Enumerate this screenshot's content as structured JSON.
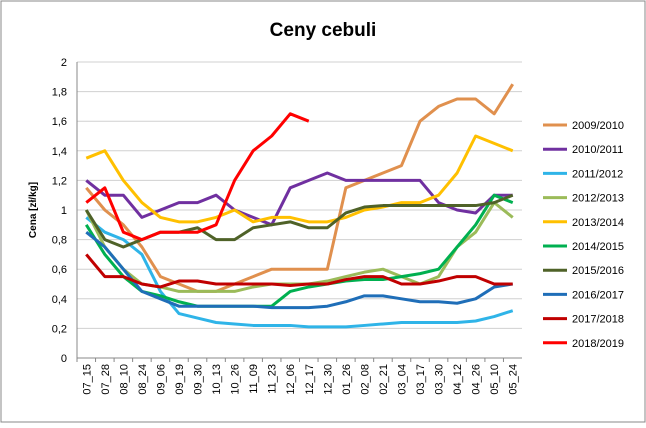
{
  "chart_data": {
    "type": "line",
    "title": "Ceny cebuli",
    "y_label": "Cena [zł/kg]",
    "categories": [
      "07_15",
      "07_28",
      "08_10",
      "08_24",
      "09_06",
      "09_19",
      "09_30",
      "10_13",
      "10_26",
      "11_09",
      "11_23",
      "12_06",
      "12_17",
      "12_30",
      "01_26",
      "02_08",
      "02_21",
      "03_04",
      "03_17",
      "03_30",
      "04_12",
      "04_26",
      "05_10",
      "05_24"
    ],
    "ylim": [
      0,
      2
    ],
    "yticks": [
      0,
      {
        "value": 0.2,
        "label": "0,2"
      },
      {
        "value": 0.4,
        "label": "0,4"
      },
      {
        "value": 0.6,
        "label": "0,6"
      },
      {
        "value": 0.8,
        "label": "0,8"
      },
      1,
      {
        "value": 1.2,
        "label": "1,2"
      },
      {
        "value": 1.4,
        "label": "1,4"
      },
      {
        "value": 1.6,
        "label": "1,6"
      },
      {
        "value": 1.8,
        "label": "1,8"
      },
      2
    ],
    "grid": true,
    "legend": "right",
    "series": [
      {
        "name": "2009/2010",
        "color": "#e0904e",
        "values": [
          1.15,
          1.0,
          0.9,
          0.75,
          0.55,
          0.5,
          0.45,
          0.45,
          0.5,
          0.55,
          0.6,
          0.6,
          0.6,
          0.6,
          1.15,
          1.2,
          1.25,
          1.3,
          1.6,
          1.7,
          1.75,
          1.75,
          1.65,
          1.85
        ]
      },
      {
        "name": "2010/2011",
        "color": "#7030a0",
        "values": [
          1.2,
          1.1,
          1.1,
          0.95,
          1.0,
          1.05,
          1.05,
          1.1,
          1.0,
          0.95,
          0.9,
          1.15,
          1.2,
          1.25,
          1.2,
          1.2,
          1.2,
          1.2,
          1.2,
          1.05,
          1.0,
          0.98,
          1.1,
          1.1
        ]
      },
      {
        "name": "2011/2012",
        "color": "#2fb4e8",
        "values": [
          0.95,
          0.85,
          0.8,
          0.7,
          0.45,
          0.3,
          0.27,
          0.24,
          0.23,
          0.22,
          0.22,
          0.22,
          0.21,
          0.21,
          0.21,
          0.22,
          0.23,
          0.24,
          0.24,
          0.24,
          0.24,
          0.25,
          0.28,
          0.32
        ]
      },
      {
        "name": "2012/2013",
        "color": "#9bbb59",
        "values": [
          1.0,
          0.75,
          0.6,
          0.5,
          0.48,
          0.45,
          0.45,
          0.45,
          0.45,
          0.48,
          0.5,
          0.5,
          0.5,
          0.52,
          0.55,
          0.58,
          0.6,
          0.55,
          0.5,
          0.55,
          0.75,
          0.85,
          1.05,
          0.95
        ]
      },
      {
        "name": "2013/2014",
        "color": "#ffc000",
        "values": [
          1.35,
          1.4,
          1.2,
          1.05,
          0.95,
          0.92,
          0.92,
          0.95,
          1.0,
          0.92,
          0.95,
          0.95,
          0.92,
          0.92,
          0.95,
          1.0,
          1.02,
          1.05,
          1.05,
          1.1,
          1.25,
          1.5,
          1.45,
          1.4
        ]
      },
      {
        "name": "2014/2015",
        "color": "#00b050",
        "values": [
          0.9,
          0.7,
          0.55,
          0.45,
          0.42,
          0.38,
          0.35,
          0.35,
          0.35,
          0.35,
          0.35,
          0.45,
          0.48,
          0.5,
          0.52,
          0.53,
          0.53,
          0.55,
          0.57,
          0.6,
          0.75,
          0.9,
          1.1,
          1.05
        ]
      },
      {
        "name": "2015/2016",
        "color": "#4f6228",
        "values": [
          1.0,
          0.8,
          0.75,
          0.8,
          0.85,
          0.85,
          0.88,
          0.8,
          0.8,
          0.88,
          0.9,
          0.92,
          0.88,
          0.88,
          0.98,
          1.02,
          1.03,
          1.03,
          1.03,
          1.03,
          1.03,
          1.03,
          1.05,
          1.1
        ]
      },
      {
        "name": "2016/2017",
        "color": "#1f6eb8",
        "values": [
          0.85,
          0.75,
          0.6,
          0.45,
          0.4,
          0.35,
          0.35,
          0.35,
          0.35,
          0.35,
          0.34,
          0.34,
          0.34,
          0.35,
          0.38,
          0.42,
          0.42,
          0.4,
          0.38,
          0.38,
          0.37,
          0.4,
          0.48,
          0.5
        ]
      },
      {
        "name": "2017/2018",
        "color": "#c00000",
        "values": [
          0.7,
          0.55,
          0.55,
          0.5,
          0.48,
          0.52,
          0.52,
          0.5,
          0.5,
          0.5,
          0.5,
          0.49,
          0.5,
          0.5,
          0.53,
          0.55,
          0.55,
          0.5,
          0.5,
          0.52,
          0.55,
          0.55,
          0.5,
          0.5
        ]
      },
      {
        "name": "2018/2019",
        "color": "#ff0000",
        "values": [
          1.05,
          1.15,
          0.85,
          0.8,
          0.85,
          0.85,
          0.85,
          0.9,
          1.2,
          1.4,
          1.5,
          1.65,
          1.6,
          null,
          null,
          null,
          null,
          null,
          null,
          null,
          null,
          null,
          null,
          null
        ]
      }
    ]
  }
}
